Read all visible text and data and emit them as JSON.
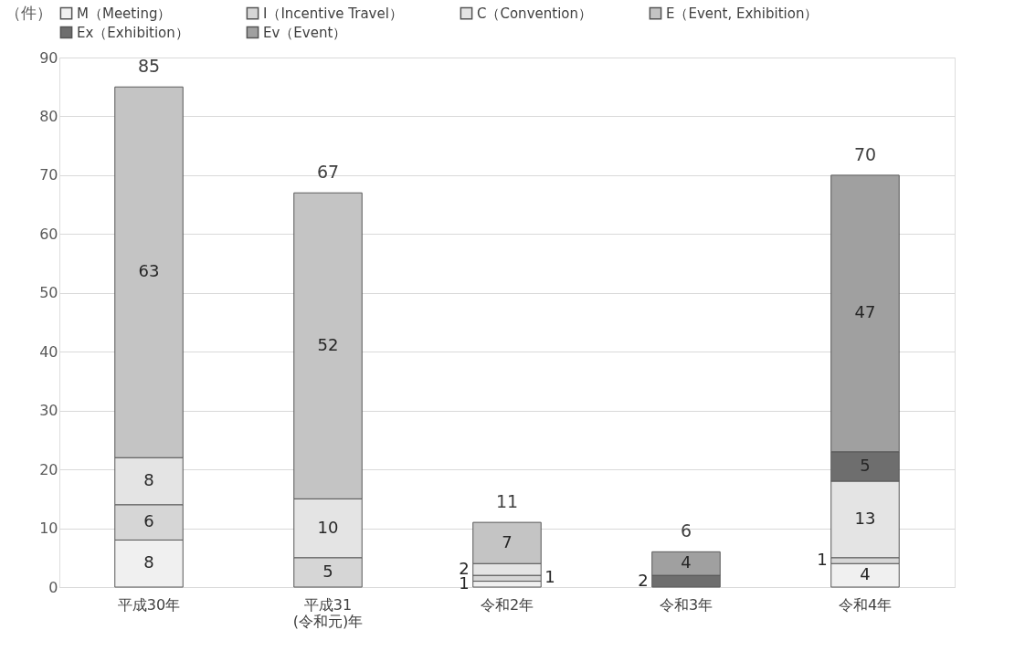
{
  "chart_data": {
    "type": "bar",
    "stacked": true,
    "ylabel": "（件）",
    "categories": [
      "平成30年",
      "平成31\n(令和元)年",
      "令和2年",
      "令和3年",
      "令和4年"
    ],
    "series": [
      {
        "name": "M（Meeting）",
        "color": "#f0f0f0",
        "values": [
          8,
          null,
          1,
          null,
          4
        ]
      },
      {
        "name": "I（Incentive Travel）",
        "color": "#d6d6d6",
        "values": [
          6,
          5,
          1,
          null,
          1
        ]
      },
      {
        "name": "C（Convention）",
        "color": "#e4e4e4",
        "values": [
          8,
          10,
          2,
          null,
          13
        ]
      },
      {
        "name": "E（Event, Exhibition）",
        "color": "#c4c4c4",
        "values": [
          63,
          52,
          7,
          null,
          null
        ]
      },
      {
        "name": "Ex（Exhibition）",
        "color": "#6e6e6e",
        "values": [
          null,
          null,
          null,
          2,
          5
        ]
      },
      {
        "name": "Ev（Event）",
        "color": "#a0a0a0",
        "values": [
          null,
          null,
          null,
          4,
          47
        ]
      }
    ],
    "totals": [
      "85",
      "67",
      "11",
      "6",
      "70"
    ],
    "data_labels": true,
    "ylim": [
      0,
      90
    ],
    "yticks": [
      0,
      10,
      20,
      30,
      40,
      50,
      60,
      70,
      80,
      90
    ],
    "grid": "y",
    "legend": "top"
  }
}
